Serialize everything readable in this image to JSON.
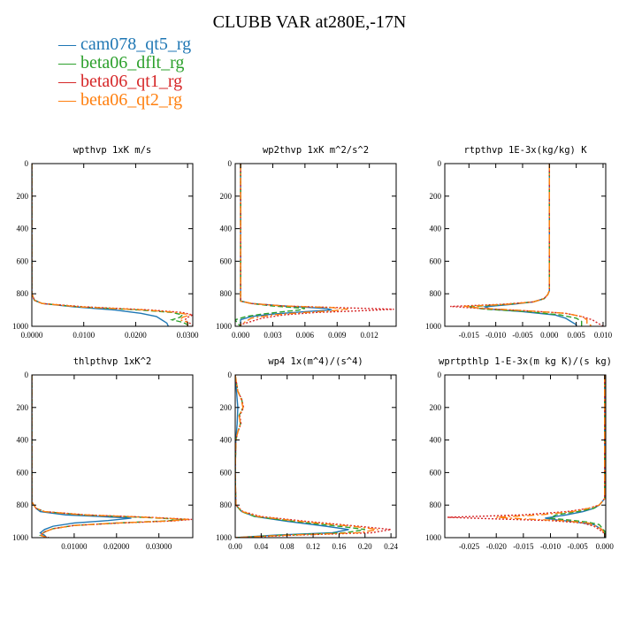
{
  "title": "CLUBB VAR at280E,-17N",
  "legend": [
    {
      "label": "cam078_qt5_rg",
      "color": "#1f77b4"
    },
    {
      "label": "beta06_dflt_rg",
      "color": "#2ca02c"
    },
    {
      "label": "beta06_qt1_rg",
      "color": "#d62728"
    },
    {
      "label": "beta06_qt2_rg",
      "color": "#ff7f0e"
    }
  ],
  "chart_data": [
    {
      "type": "line",
      "title": "wpthvp  1xK m/s",
      "ylim": [
        1000,
        0
      ],
      "xlim": [
        0,
        0.031
      ],
      "xticks": [
        "0.0000",
        "0.0100",
        "0.0200",
        "0.0300"
      ],
      "yticks": [
        "0",
        "200",
        "400",
        "600",
        "800",
        "1000"
      ],
      "series": [
        {
          "name": "cam078_qt5_rg",
          "y": [
            0,
            800,
            840,
            860,
            880,
            900,
            920,
            940,
            960,
            980,
            1000
          ],
          "x": [
            0,
            0,
            0.0005,
            0.002,
            0.008,
            0.016,
            0.021,
            0.024,
            0.025,
            0.026,
            0.0263
          ]
        },
        {
          "name": "beta06_dflt_rg",
          "y": [
            0,
            800,
            840,
            860,
            880,
            900,
            915,
            930,
            945,
            960,
            975,
            990,
            1000
          ],
          "x": [
            0,
            0,
            0.0005,
            0.002,
            0.009,
            0.021,
            0.027,
            0.029,
            0.0285,
            0.027,
            0.029,
            0.03,
            0.03
          ]
        },
        {
          "name": "beta06_qt1_rg",
          "y": [
            0,
            800,
            840,
            860,
            880,
            900,
            915,
            930,
            945,
            960,
            975,
            990,
            1000
          ],
          "x": [
            0,
            0,
            0.0005,
            0.002,
            0.01,
            0.023,
            0.029,
            0.031,
            0.03,
            0.0295,
            0.03,
            0.031,
            0.031
          ]
        },
        {
          "name": "beta06_qt2_rg",
          "y": [
            0,
            800,
            840,
            860,
            880,
            900,
            915,
            930,
            945,
            960,
            975,
            990,
            1000
          ],
          "x": [
            0,
            0,
            0.0005,
            0.002,
            0.009,
            0.022,
            0.028,
            0.0305,
            0.029,
            0.0285,
            0.03,
            0.03,
            0.03
          ]
        }
      ]
    },
    {
      "type": "line",
      "title": "wp2thvp  1xK m^2/s^2",
      "ylim": [
        1000,
        0
      ],
      "xlim": [
        -0.0005,
        0.0145
      ],
      "xticks": [
        "0.000",
        "0.003",
        "0.006",
        "0.009",
        "0.012"
      ],
      "yticks": [
        "0",
        "200",
        "400",
        "600",
        "800",
        "1000"
      ],
      "series": [
        {
          "name": "cam078_qt5_rg",
          "y": [
            0,
            820,
            845,
            860,
            875,
            890,
            900,
            910,
            925,
            940,
            960,
            980,
            1000
          ],
          "x": [
            0,
            0,
            0,
            0.001,
            0.004,
            0.008,
            0.0085,
            0.006,
            0.003,
            0.001,
            0,
            0,
            0
          ]
        },
        {
          "name": "beta06_dflt_rg",
          "y": [
            0,
            820,
            845,
            860,
            875,
            890,
            900,
            910,
            925,
            940,
            960,
            980,
            1000
          ],
          "x": [
            0,
            0,
            0,
            0.001,
            0.003,
            0.006,
            0.0055,
            0.004,
            0.002,
            0.0005,
            -0.0005,
            -0.0003,
            0
          ]
        },
        {
          "name": "beta06_qt1_rg",
          "y": [
            0,
            820,
            845,
            860,
            875,
            885,
            895,
            905,
            915,
            930,
            950,
            970,
            990,
            1000
          ],
          "x": [
            0,
            0,
            0,
            0.001,
            0.004,
            0.009,
            0.0143,
            0.011,
            0.007,
            0.004,
            0.002,
            0.001,
            0,
            0
          ]
        },
        {
          "name": "beta06_qt2_rg",
          "y": [
            0,
            820,
            845,
            860,
            875,
            885,
            895,
            905,
            915,
            930,
            950,
            970,
            990,
            1000
          ],
          "x": [
            0,
            0,
            0,
            0.001,
            0.004,
            0.0085,
            0.01,
            0.0085,
            0.006,
            0.003,
            0.001,
            0.0005,
            0,
            0
          ]
        }
      ]
    },
    {
      "type": "line",
      "title": "rtpthvp  1E-3x(kg/kg) K",
      "ylim": [
        1000,
        0
      ],
      "xlim": [
        -0.0195,
        0.0105
      ],
      "xticks": [
        "-0.015",
        "-0.010",
        "-0.005",
        "0.000",
        "0.005",
        "0.010"
      ],
      "yticks": [
        "0",
        "200",
        "400",
        "600",
        "800",
        "1000"
      ],
      "series": [
        {
          "name": "cam078_qt5_rg",
          "y": [
            0,
            780,
            805,
            830,
            850,
            865,
            880,
            895,
            910,
            930,
            950,
            970,
            990,
            1000
          ],
          "x": [
            0,
            0,
            -0.0003,
            -0.001,
            -0.003,
            -0.007,
            -0.012,
            -0.011,
            -0.005,
            0.001,
            0.003,
            0.004,
            0.005,
            0.005
          ]
        },
        {
          "name": "beta06_dflt_rg",
          "y": [
            0,
            780,
            805,
            830,
            850,
            865,
            880,
            895,
            910,
            930,
            950,
            970,
            990,
            1000
          ],
          "x": [
            0,
            0,
            -0.0003,
            -0.001,
            -0.003,
            -0.008,
            -0.015,
            -0.012,
            -0.004,
            0.002,
            0.005,
            0.006,
            0.006,
            0.006
          ]
        },
        {
          "name": "beta06_qt1_rg",
          "y": [
            0,
            780,
            805,
            830,
            850,
            865,
            878,
            890,
            905,
            920,
            940,
            960,
            980,
            1000
          ],
          "x": [
            0,
            0,
            -0.0003,
            -0.001,
            -0.003,
            -0.009,
            -0.0185,
            -0.013,
            -0.004,
            0.003,
            0.006,
            0.008,
            0.009,
            0.01
          ]
        },
        {
          "name": "beta06_qt2_rg",
          "y": [
            0,
            780,
            805,
            830,
            850,
            865,
            878,
            890,
            905,
            920,
            940,
            960,
            980,
            1000
          ],
          "x": [
            0,
            0,
            -0.0003,
            -0.001,
            -0.003,
            -0.008,
            -0.016,
            -0.012,
            -0.004,
            0.003,
            0.006,
            0.007,
            0.007,
            0.008
          ]
        }
      ]
    },
    {
      "type": "line",
      "title": "thlpthvp  1xK^2",
      "ylim": [
        1000,
        0
      ],
      "xlim": [
        0,
        0.038
      ],
      "xticks": [
        "0.01000",
        "0.02000",
        "0.03000"
      ],
      "yticks": [
        "0",
        "200",
        "400",
        "600",
        "800",
        "1000"
      ],
      "series": [
        {
          "name": "cam078_qt5_rg",
          "y": [
            0,
            780,
            800,
            820,
            840,
            860,
            870,
            880,
            895,
            910,
            930,
            950,
            970,
            985,
            1000
          ],
          "x": [
            0,
            0,
            0.0005,
            0.001,
            0.002,
            0.008,
            0.016,
            0.0235,
            0.018,
            0.01,
            0.005,
            0.003,
            0.002,
            0.003,
            0.0035
          ]
        },
        {
          "name": "beta06_dflt_rg",
          "y": [
            0,
            780,
            800,
            820,
            840,
            860,
            875,
            888,
            898,
            910,
            925,
            945,
            965,
            985,
            1000
          ],
          "x": [
            0,
            0,
            0.0005,
            0.001,
            0.003,
            0.012,
            0.026,
            0.036,
            0.031,
            0.02,
            0.01,
            0.005,
            0.003,
            0.002,
            0.004
          ]
        },
        {
          "name": "beta06_qt1_rg",
          "y": [
            0,
            780,
            800,
            820,
            840,
            860,
            875,
            888,
            898,
            910,
            925,
            945,
            965,
            985,
            1000
          ],
          "x": [
            0,
            0,
            0.0005,
            0.001,
            0.003,
            0.013,
            0.028,
            0.0378,
            0.033,
            0.021,
            0.01,
            0.005,
            0.003,
            0.002,
            0.004
          ]
        },
        {
          "name": "beta06_qt2_rg",
          "y": [
            0,
            780,
            800,
            820,
            840,
            860,
            875,
            888,
            898,
            910,
            925,
            945,
            965,
            985,
            1000
          ],
          "x": [
            0,
            0,
            0.0005,
            0.001,
            0.003,
            0.012,
            0.027,
            0.037,
            0.032,
            0.02,
            0.01,
            0.005,
            0.003,
            0.002,
            0.0035
          ]
        }
      ]
    },
    {
      "type": "line",
      "title": "wp4  1x(m^4)/(s^4)",
      "ylim": [
        1000,
        0
      ],
      "xlim": [
        0,
        0.248
      ],
      "xticks": [
        "0.00",
        "0.04",
        "0.08",
        "0.12",
        "0.16",
        "0.20",
        "0.24"
      ],
      "yticks": [
        "0",
        "200",
        "400",
        "600",
        "800",
        "1000"
      ],
      "series": [
        {
          "name": "cam078_qt5_rg",
          "y": [
            0,
            100,
            200,
            300,
            400,
            600,
            800,
            840,
            870,
            900,
            930,
            950,
            970,
            985,
            1000
          ],
          "x": [
            0,
            0.002,
            0.004,
            0.003,
            0.001,
            0,
            0.001,
            0.01,
            0.03,
            0.08,
            0.14,
            0.175,
            0.15,
            0.06,
            0
          ]
        },
        {
          "name": "beta06_dflt_rg",
          "y": [
            0,
            100,
            150,
            200,
            250,
            300,
            350,
            400,
            600,
            800,
            840,
            870,
            900,
            930,
            950,
            970,
            985,
            1000
          ],
          "x": [
            0,
            0.004,
            0.01,
            0.012,
            0.006,
            0.008,
            0.004,
            0.001,
            0,
            0.001,
            0.01,
            0.03,
            0.09,
            0.16,
            0.2,
            0.17,
            0.07,
            0
          ]
        },
        {
          "name": "beta06_qt1_rg",
          "y": [
            0,
            100,
            150,
            200,
            250,
            300,
            350,
            400,
            600,
            800,
            840,
            870,
            900,
            930,
            950,
            970,
            985,
            1000
          ],
          "x": [
            0,
            0.004,
            0.01,
            0.013,
            0.007,
            0.009,
            0.004,
            0.001,
            0,
            0.001,
            0.012,
            0.04,
            0.11,
            0.19,
            0.24,
            0.21,
            0.09,
            0
          ]
        },
        {
          "name": "beta06_qt2_rg",
          "y": [
            0,
            100,
            150,
            200,
            250,
            300,
            350,
            400,
            600,
            800,
            840,
            870,
            900,
            930,
            950,
            970,
            985,
            1000
          ],
          "x": [
            0,
            0.004,
            0.009,
            0.012,
            0.006,
            0.008,
            0.004,
            0.001,
            0,
            0.001,
            0.011,
            0.035,
            0.1,
            0.18,
            0.22,
            0.19,
            0.08,
            0
          ]
        }
      ]
    },
    {
      "type": "line",
      "title": "wprtpthlp  1-E-3x(m kg K)/(s kg)",
      "ylim": [
        1000,
        0
      ],
      "xlim": [
        -0.0295,
        0.0002
      ],
      "xticks": [
        "-0.025",
        "-0.020",
        "-0.015",
        "-0.010",
        "-0.005",
        "0.000"
      ],
      "yticks": [
        "0",
        "200",
        "400",
        "600",
        "800",
        "1000"
      ],
      "series": [
        {
          "name": "cam078_qt5_rg",
          "y": [
            0,
            760,
            780,
            800,
            820,
            840,
            860,
            880,
            890,
            905,
            920,
            940,
            960,
            980,
            1000
          ],
          "x": [
            0,
            0,
            -0.0005,
            -0.001,
            -0.002,
            -0.004,
            -0.007,
            -0.011,
            -0.009,
            -0.005,
            -0.002,
            -0.001,
            0,
            0,
            0
          ]
        },
        {
          "name": "beta06_dflt_rg",
          "y": [
            0,
            760,
            780,
            800,
            820,
            840,
            860,
            880,
            890,
            905,
            920,
            940,
            960,
            980,
            1000
          ],
          "x": [
            0,
            0,
            -0.0005,
            -0.001,
            -0.002,
            -0.005,
            -0.009,
            -0.01,
            -0.007,
            -0.003,
            -0.001,
            -0.0005,
            0,
            0,
            0
          ]
        },
        {
          "name": "beta06_qt1_rg",
          "y": [
            0,
            760,
            780,
            800,
            820,
            840,
            860,
            875,
            885,
            895,
            910,
            930,
            950,
            975,
            1000
          ],
          "x": [
            0,
            0,
            -0.0005,
            -0.001,
            -0.003,
            -0.007,
            -0.015,
            -0.029,
            -0.02,
            -0.01,
            -0.004,
            -0.002,
            -0.001,
            0,
            0
          ]
        },
        {
          "name": "beta06_qt2_rg",
          "y": [
            0,
            760,
            780,
            800,
            820,
            840,
            860,
            875,
            885,
            895,
            910,
            930,
            950,
            975,
            1000
          ],
          "x": [
            0,
            0,
            -0.0005,
            -0.001,
            -0.003,
            -0.006,
            -0.012,
            -0.02,
            -0.015,
            -0.008,
            -0.003,
            -0.0015,
            -0.0005,
            0,
            0
          ]
        }
      ]
    }
  ]
}
